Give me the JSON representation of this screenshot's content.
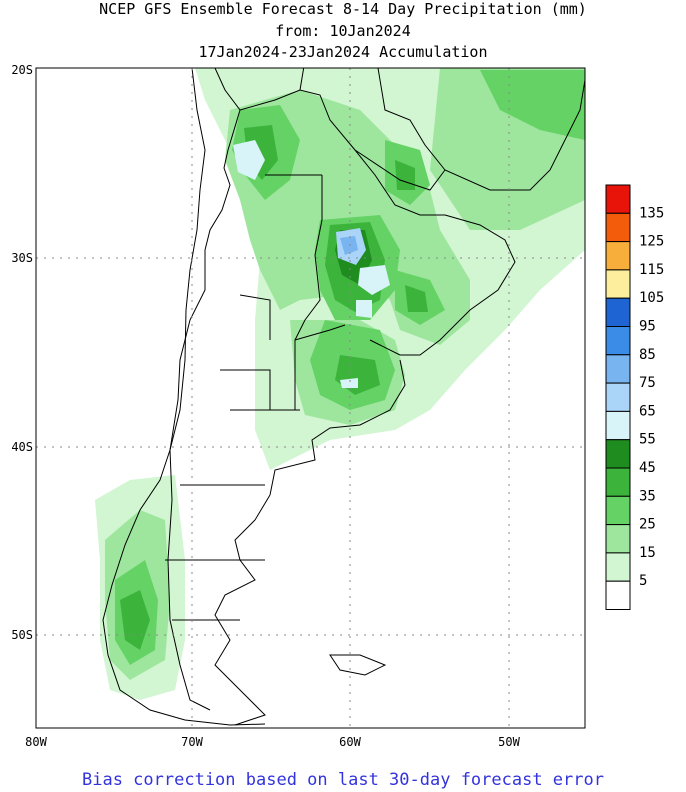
{
  "header": {
    "line1": "NCEP GFS Ensemble Forecast 8-14 Day Precipitation (mm)",
    "line2": "from: 10Jan2024",
    "line3": "17Jan2024-23Jan2024 Accumulation"
  },
  "map": {
    "lat_labels": [
      "20S",
      "30S",
      "40S",
      "50S"
    ],
    "lon_labels": [
      "80W",
      "70W",
      "60W",
      "50W"
    ],
    "grid": "dotted"
  },
  "legend": {
    "levels": [
      {
        "label": "135",
        "color": "#e8140a"
      },
      {
        "label": "125",
        "color": "#f25c0a"
      },
      {
        "label": "115",
        "color": "#f8ae3a"
      },
      {
        "label": "105",
        "color": "#fcee9c"
      },
      {
        "label": "95",
        "color": "#1e64d2"
      },
      {
        "label": "85",
        "color": "#3a8ce6"
      },
      {
        "label": "75",
        "color": "#78b4f0"
      },
      {
        "label": "65",
        "color": "#aad4f8"
      },
      {
        "label": "55",
        "color": "#d8f4f8"
      },
      {
        "label": "45",
        "color": "#1e8c1e"
      },
      {
        "label": "35",
        "color": "#3cb43c"
      },
      {
        "label": "25",
        "color": "#64d264"
      },
      {
        "label": "15",
        "color": "#9ee69e"
      },
      {
        "label": "5",
        "color": "#d2f5d2"
      },
      {
        "label": "",
        "color": "#ffffff"
      }
    ]
  },
  "footer": {
    "note": "Bias correction based on last 30-day forecast error"
  }
}
